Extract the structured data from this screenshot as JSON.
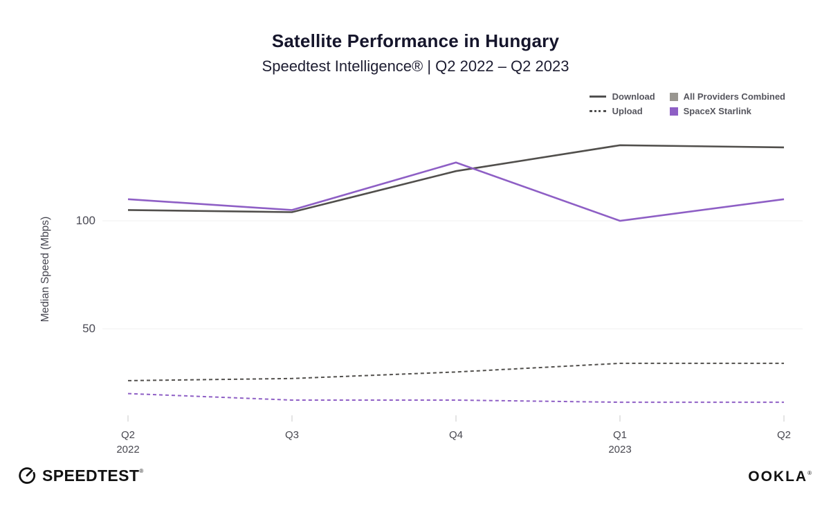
{
  "header": {
    "title": "Satellite Performance in Hungary",
    "subtitle": "Speedtest Intelligence® | Q2 2022 – Q2 2023"
  },
  "legend": {
    "metric_items": [
      {
        "label": "Download",
        "line_style": "solid"
      },
      {
        "label": "Upload",
        "line_style": "dashed"
      }
    ],
    "provider_items": [
      {
        "label": "All Providers Combined",
        "color": "#999690"
      },
      {
        "label": "SpaceX Starlink",
        "color": "#8e5fc5"
      }
    ]
  },
  "chart_data": {
    "type": "line",
    "title": "Satellite Performance in Hungary",
    "subtitle": "Speedtest Intelligence® | Q2 2022 – Q2 2023",
    "xlabel": "",
    "ylabel": "Median Speed (Mbps)",
    "units": "Mbps",
    "ylim": [
      0,
      150
    ],
    "y_ticks": [
      100,
      50
    ],
    "grid": "horizontal-only",
    "legend_position": "top-right",
    "categories": [
      {
        "label": "Q2",
        "year": "2022"
      },
      {
        "label": "Q3",
        "year": ""
      },
      {
        "label": "Q4",
        "year": ""
      },
      {
        "label": "Q1",
        "year": "2023"
      },
      {
        "label": "Q2",
        "year": ""
      }
    ],
    "series": [
      {
        "name": "All Providers Combined — Download",
        "provider": "All Providers Combined",
        "metric": "Download",
        "line_style": "solid",
        "color": "#514f4c",
        "values": [
          105,
          104,
          123,
          135,
          134
        ]
      },
      {
        "name": "SpaceX Starlink — Download",
        "provider": "SpaceX Starlink",
        "metric": "Download",
        "line_style": "solid",
        "color": "#8e5fc5",
        "values": [
          110,
          105,
          127,
          100,
          110
        ]
      },
      {
        "name": "All Providers Combined — Upload",
        "provider": "All Providers Combined",
        "metric": "Upload",
        "line_style": "dashed",
        "color": "#514f4c",
        "values": [
          26,
          27,
          30,
          34,
          34
        ]
      },
      {
        "name": "SpaceX Starlink — Upload",
        "provider": "SpaceX Starlink",
        "metric": "Upload",
        "line_style": "dashed",
        "color": "#8e5fc5",
        "values": [
          20,
          17,
          17,
          16,
          16
        ]
      }
    ]
  },
  "footer": {
    "speedtest_label": "SPEEDTEST",
    "speedtest_mark": "®",
    "ookla_label": "OOKLA",
    "ookla_mark": "®"
  }
}
